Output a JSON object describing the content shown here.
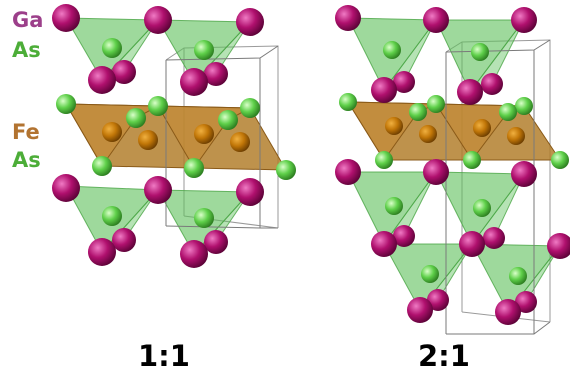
{
  "legend": {
    "ga": {
      "text": "Ga",
      "color": "#9c3f8a"
    },
    "as_top": {
      "text": "As",
      "color": "#4cad38"
    },
    "fe": {
      "text": "Fe",
      "color": "#b27330"
    },
    "as_bottom": {
      "text": "As",
      "color": "#4cad38"
    }
  },
  "captions": {
    "left": "1:1",
    "right": "2:1"
  },
  "colors": {
    "ga_atom": "#b0106e",
    "as_atom": "#5fd04a",
    "fe_atom": "#c27708",
    "as_tetra": "#5dc05a",
    "fe_layer": "#b07a25"
  }
}
